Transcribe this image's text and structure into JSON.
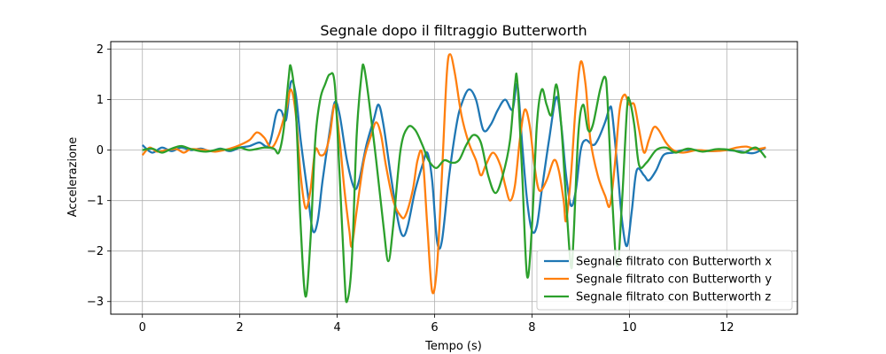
{
  "chart_data": {
    "type": "line",
    "title": "Segnale dopo il filtraggio Butterworth",
    "xlabel": "Tempo (s)",
    "ylabel": "Accelerazione",
    "xlim": [
      -0.65,
      13.45
    ],
    "ylim": [
      -3.25,
      2.15
    ],
    "x_ticks": [
      0,
      2,
      4,
      6,
      8,
      10,
      12
    ],
    "x_tick_labels": [
      "0",
      "2",
      "4",
      "6",
      "8",
      "10",
      "12"
    ],
    "y_ticks": [
      -3,
      -2,
      -1,
      0,
      1,
      2
    ],
    "y_tick_labels": [
      "−3",
      "−2",
      "−1",
      "0",
      "1",
      "2"
    ],
    "grid": true,
    "legend_position": "bottom-right",
    "series": [
      {
        "name": "Segnale filtrato con Butterworth x",
        "color": "#1f77b4",
        "points": [
          [
            0.0,
            0.1
          ],
          [
            0.2,
            -0.05
          ],
          [
            0.4,
            0.05
          ],
          [
            0.6,
            -0.02
          ],
          [
            0.8,
            0.05
          ],
          [
            1.0,
            0.0
          ],
          [
            1.2,
            0.03
          ],
          [
            1.4,
            -0.02
          ],
          [
            1.6,
            0.03
          ],
          [
            1.8,
            -0.02
          ],
          [
            2.0,
            0.05
          ],
          [
            2.2,
            0.08
          ],
          [
            2.4,
            0.15
          ],
          [
            2.6,
            0.1
          ],
          [
            2.75,
            0.72
          ],
          [
            2.85,
            0.78
          ],
          [
            2.95,
            0.6
          ],
          [
            3.05,
            1.35
          ],
          [
            3.15,
            1.1
          ],
          [
            3.25,
            0.2
          ],
          [
            3.4,
            -0.9
          ],
          [
            3.5,
            -1.6
          ],
          [
            3.6,
            -1.4
          ],
          [
            3.7,
            -0.6
          ],
          [
            3.85,
            0.4
          ],
          [
            3.95,
            0.95
          ],
          [
            4.05,
            0.7
          ],
          [
            4.2,
            -0.2
          ],
          [
            4.35,
            -0.75
          ],
          [
            4.45,
            -0.6
          ],
          [
            4.6,
            0.1
          ],
          [
            4.75,
            0.6
          ],
          [
            4.85,
            0.9
          ],
          [
            4.95,
            0.5
          ],
          [
            5.1,
            -0.5
          ],
          [
            5.25,
            -1.4
          ],
          [
            5.35,
            -1.7
          ],
          [
            5.45,
            -1.5
          ],
          [
            5.6,
            -0.8
          ],
          [
            5.75,
            -0.3
          ],
          [
            5.85,
            -0.05
          ],
          [
            5.95,
            -0.6
          ],
          [
            6.05,
            -1.8
          ],
          [
            6.15,
            -1.8
          ],
          [
            6.3,
            -0.5
          ],
          [
            6.45,
            0.5
          ],
          [
            6.55,
            0.9
          ],
          [
            6.7,
            1.2
          ],
          [
            6.85,
            1.0
          ],
          [
            7.0,
            0.4
          ],
          [
            7.15,
            0.5
          ],
          [
            7.3,
            0.8
          ],
          [
            7.45,
            1.0
          ],
          [
            7.6,
            0.8
          ],
          [
            7.7,
            1.3
          ],
          [
            7.8,
            0.1
          ],
          [
            7.9,
            -1.0
          ],
          [
            8.0,
            -1.6
          ],
          [
            8.1,
            -1.5
          ],
          [
            8.2,
            -0.8
          ],
          [
            8.35,
            0.2
          ],
          [
            8.5,
            1.05
          ],
          [
            8.6,
            0.5
          ],
          [
            8.7,
            -0.5
          ],
          [
            8.8,
            -1.1
          ],
          [
            8.9,
            -0.8
          ],
          [
            9.0,
            0.0
          ],
          [
            9.1,
            0.2
          ],
          [
            9.25,
            0.1
          ],
          [
            9.35,
            0.2
          ],
          [
            9.5,
            0.55
          ],
          [
            9.6,
            0.85
          ],
          [
            9.65,
            0.7
          ],
          [
            9.75,
            -0.3
          ],
          [
            9.85,
            -1.4
          ],
          [
            9.95,
            -1.9
          ],
          [
            10.05,
            -1.2
          ],
          [
            10.15,
            -0.4
          ],
          [
            10.3,
            -0.5
          ],
          [
            10.4,
            -0.6
          ],
          [
            10.55,
            -0.4
          ],
          [
            10.7,
            -0.1
          ],
          [
            10.9,
            -0.05
          ],
          [
            11.1,
            0.0
          ],
          [
            11.4,
            0.0
          ],
          [
            11.7,
            -0.02
          ],
          [
            12.0,
            0.0
          ],
          [
            12.3,
            -0.03
          ],
          [
            12.55,
            -0.06
          ],
          [
            12.8,
            0.05
          ]
        ]
      },
      {
        "name": "Segnale filtrato con Butterworth y",
        "color": "#ff7f0e",
        "points": [
          [
            0.0,
            -0.1
          ],
          [
            0.15,
            0.05
          ],
          [
            0.3,
            -0.03
          ],
          [
            0.5,
            0.0
          ],
          [
            0.7,
            0.02
          ],
          [
            0.85,
            -0.05
          ],
          [
            1.0,
            0.02
          ],
          [
            1.3,
            0.0
          ],
          [
            1.5,
            -0.03
          ],
          [
            1.8,
            0.03
          ],
          [
            2.0,
            0.1
          ],
          [
            2.2,
            0.2
          ],
          [
            2.35,
            0.35
          ],
          [
            2.5,
            0.25
          ],
          [
            2.65,
            0.05
          ],
          [
            2.8,
            0.3
          ],
          [
            2.95,
            0.8
          ],
          [
            3.05,
            1.2
          ],
          [
            3.15,
            0.7
          ],
          [
            3.25,
            -0.5
          ],
          [
            3.35,
            -1.15
          ],
          [
            3.45,
            -0.8
          ],
          [
            3.55,
            0.0
          ],
          [
            3.65,
            -0.1
          ],
          [
            3.75,
            -0.05
          ],
          [
            3.85,
            0.3
          ],
          [
            3.95,
            0.9
          ],
          [
            4.05,
            0.2
          ],
          [
            4.15,
            -0.8
          ],
          [
            4.25,
            -1.6
          ],
          [
            4.3,
            -1.9
          ],
          [
            4.4,
            -1.2
          ],
          [
            4.55,
            -0.2
          ],
          [
            4.7,
            0.3
          ],
          [
            4.8,
            0.55
          ],
          [
            4.9,
            0.3
          ],
          [
            5.0,
            -0.3
          ],
          [
            5.15,
            -1.0
          ],
          [
            5.3,
            -1.3
          ],
          [
            5.4,
            -1.3
          ],
          [
            5.55,
            -0.8
          ],
          [
            5.65,
            -0.2
          ],
          [
            5.75,
            -0.1
          ],
          [
            5.85,
            -1.5
          ],
          [
            5.95,
            -2.8
          ],
          [
            6.05,
            -2.3
          ],
          [
            6.15,
            -0.5
          ],
          [
            6.25,
            1.5
          ],
          [
            6.32,
            1.9
          ],
          [
            6.42,
            1.5
          ],
          [
            6.55,
            0.7
          ],
          [
            6.7,
            0.15
          ],
          [
            6.85,
            -0.2
          ],
          [
            6.95,
            -0.5
          ],
          [
            7.05,
            -0.3
          ],
          [
            7.2,
            -0.05
          ],
          [
            7.35,
            -0.3
          ],
          [
            7.45,
            -0.7
          ],
          [
            7.55,
            -1.0
          ],
          [
            7.65,
            -0.7
          ],
          [
            7.75,
            0.2
          ],
          [
            7.85,
            0.8
          ],
          [
            7.95,
            0.5
          ],
          [
            8.05,
            -0.3
          ],
          [
            8.15,
            -0.8
          ],
          [
            8.3,
            -0.6
          ],
          [
            8.45,
            -0.2
          ],
          [
            8.55,
            -0.4
          ],
          [
            8.65,
            -1.0
          ],
          [
            8.7,
            -1.4
          ],
          [
            8.8,
            -0.5
          ],
          [
            8.9,
            0.9
          ],
          [
            9.0,
            1.75
          ],
          [
            9.1,
            1.3
          ],
          [
            9.2,
            0.2
          ],
          [
            9.35,
            -0.5
          ],
          [
            9.5,
            -0.9
          ],
          [
            9.6,
            -1.1
          ],
          [
            9.7,
            -0.3
          ],
          [
            9.8,
            0.8
          ],
          [
            9.9,
            1.1
          ],
          [
            10.0,
            0.9
          ],
          [
            10.1,
            0.9
          ],
          [
            10.2,
            0.4
          ],
          [
            10.3,
            -0.05
          ],
          [
            10.4,
            0.2
          ],
          [
            10.5,
            0.45
          ],
          [
            10.6,
            0.4
          ],
          [
            10.75,
            0.15
          ],
          [
            10.9,
            0.0
          ],
          [
            11.1,
            -0.05
          ],
          [
            11.4,
            0.0
          ],
          [
            11.7,
            -0.02
          ],
          [
            12.0,
            0.0
          ],
          [
            12.2,
            0.05
          ],
          [
            12.4,
            0.07
          ],
          [
            12.6,
            0.02
          ],
          [
            12.8,
            0.05
          ]
        ]
      },
      {
        "name": "Segnale filtrato con Butterworth z",
        "color": "#2ca02c",
        "points": [
          [
            0.0,
            0.0
          ],
          [
            0.2,
            0.03
          ],
          [
            0.4,
            -0.05
          ],
          [
            0.6,
            0.03
          ],
          [
            0.8,
            0.08
          ],
          [
            1.0,
            0.02
          ],
          [
            1.3,
            -0.03
          ],
          [
            1.6,
            0.02
          ],
          [
            1.8,
            0.0
          ],
          [
            2.0,
            0.05
          ],
          [
            2.2,
            0.0
          ],
          [
            2.5,
            0.05
          ],
          [
            2.7,
            0.03
          ],
          [
            2.8,
            -0.05
          ],
          [
            2.9,
            0.4
          ],
          [
            3.0,
            1.4
          ],
          [
            3.05,
            1.65
          ],
          [
            3.15,
            0.8
          ],
          [
            3.25,
            -1.5
          ],
          [
            3.35,
            -2.9
          ],
          [
            3.45,
            -1.8
          ],
          [
            3.55,
            0.2
          ],
          [
            3.65,
            1.0
          ],
          [
            3.75,
            1.3
          ],
          [
            3.85,
            1.5
          ],
          [
            3.95,
            1.3
          ],
          [
            4.05,
            -0.5
          ],
          [
            4.15,
            -2.5
          ],
          [
            4.2,
            -3.0
          ],
          [
            4.3,
            -2.2
          ],
          [
            4.4,
            0.3
          ],
          [
            4.5,
            1.5
          ],
          [
            4.55,
            1.65
          ],
          [
            4.65,
            1.0
          ],
          [
            4.8,
            -0.2
          ],
          [
            4.95,
            -1.5
          ],
          [
            5.05,
            -2.2
          ],
          [
            5.15,
            -1.5
          ],
          [
            5.3,
            0.0
          ],
          [
            5.45,
            0.45
          ],
          [
            5.6,
            0.4
          ],
          [
            5.75,
            0.1
          ],
          [
            5.85,
            -0.15
          ],
          [
            5.95,
            -0.3
          ],
          [
            6.05,
            -0.35
          ],
          [
            6.2,
            -0.2
          ],
          [
            6.35,
            -0.25
          ],
          [
            6.5,
            -0.2
          ],
          [
            6.65,
            0.1
          ],
          [
            6.8,
            0.3
          ],
          [
            6.95,
            0.15
          ],
          [
            7.1,
            -0.5
          ],
          [
            7.25,
            -0.85
          ],
          [
            7.4,
            -0.5
          ],
          [
            7.55,
            0.2
          ],
          [
            7.65,
            1.3
          ],
          [
            7.7,
            1.35
          ],
          [
            7.8,
            -0.5
          ],
          [
            7.9,
            -2.5
          ],
          [
            8.0,
            -1.5
          ],
          [
            8.1,
            0.5
          ],
          [
            8.2,
            1.2
          ],
          [
            8.3,
            0.9
          ],
          [
            8.4,
            0.7
          ],
          [
            8.5,
            1.3
          ],
          [
            8.6,
            0.5
          ],
          [
            8.7,
            -1.0
          ],
          [
            8.8,
            -2.3
          ],
          [
            8.85,
            -1.8
          ],
          [
            8.95,
            0.3
          ],
          [
            9.05,
            0.9
          ],
          [
            9.15,
            0.4
          ],
          [
            9.25,
            0.5
          ],
          [
            9.4,
            1.2
          ],
          [
            9.5,
            1.45
          ],
          [
            9.55,
            1.0
          ],
          [
            9.65,
            -1.0
          ],
          [
            9.75,
            -2.3
          ],
          [
            9.85,
            -1.0
          ],
          [
            9.95,
            0.8
          ],
          [
            10.0,
            1.0
          ],
          [
            10.1,
            0.5
          ],
          [
            10.2,
            -0.3
          ],
          [
            10.35,
            -0.25
          ],
          [
            10.55,
            0.0
          ],
          [
            10.75,
            0.05
          ],
          [
            10.95,
            -0.05
          ],
          [
            11.2,
            0.03
          ],
          [
            11.5,
            -0.03
          ],
          [
            11.8,
            0.02
          ],
          [
            12.1,
            0.0
          ],
          [
            12.35,
            -0.05
          ],
          [
            12.6,
            0.05
          ],
          [
            12.8,
            -0.15
          ]
        ]
      }
    ]
  }
}
